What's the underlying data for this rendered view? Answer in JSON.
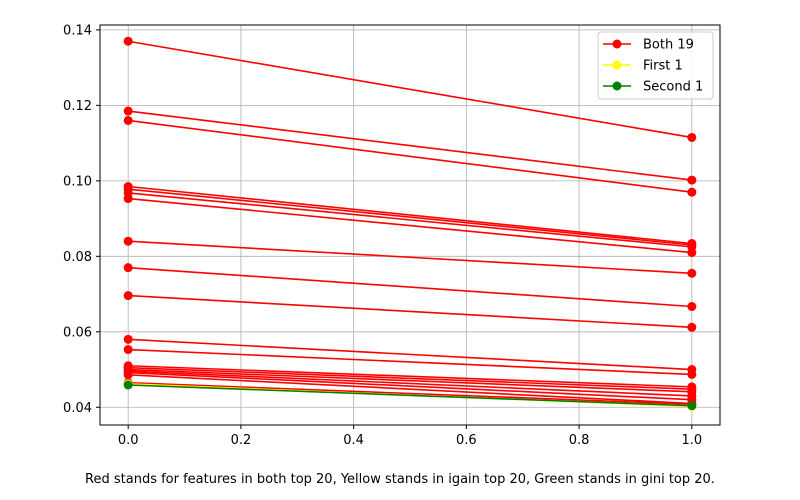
{
  "chart_data": {
    "type": "line",
    "x": [
      0,
      1
    ],
    "xlim": [
      -0.05,
      1.05
    ],
    "ylim": [
      0.0353,
      0.1413
    ],
    "xticks": [
      0.0,
      0.2,
      0.4,
      0.6,
      0.8,
      1.0
    ],
    "xtick_labels": [
      "0.0",
      "0.2",
      "0.4",
      "0.6",
      "0.8",
      "1.0"
    ],
    "yticks": [
      0.04,
      0.06,
      0.08,
      0.1,
      0.12,
      0.14
    ],
    "ytick_labels": [
      "0.04",
      "0.06",
      "0.08",
      "0.10",
      "0.12",
      "0.14"
    ],
    "grid": true,
    "legend_position": "top-right",
    "legend": [
      {
        "label": "Both 19",
        "color": "#ff0000"
      },
      {
        "label": "First 1",
        "color": "#ffff00"
      },
      {
        "label": "Second 1",
        "color": "#008000"
      }
    ],
    "series": [
      {
        "group": "both",
        "color": "#ff0000",
        "values": [
          0.137,
          0.1115
        ]
      },
      {
        "group": "both",
        "color": "#ff0000",
        "values": [
          0.1185,
          0.1002
        ]
      },
      {
        "group": "both",
        "color": "#ff0000",
        "values": [
          0.116,
          0.097
        ]
      },
      {
        "group": "both",
        "color": "#ff0000",
        "values": [
          0.0985,
          0.0834
        ]
      },
      {
        "group": "both",
        "color": "#ff0000",
        "values": [
          0.0978,
          0.083
        ]
      },
      {
        "group": "both",
        "color": "#ff0000",
        "values": [
          0.0968,
          0.0825
        ]
      },
      {
        "group": "both",
        "color": "#ff0000",
        "values": [
          0.0953,
          0.081
        ]
      },
      {
        "group": "both",
        "color": "#ff0000",
        "values": [
          0.084,
          0.0755
        ]
      },
      {
        "group": "both",
        "color": "#ff0000",
        "values": [
          0.077,
          0.0667
        ]
      },
      {
        "group": "both",
        "color": "#ff0000",
        "values": [
          0.0696,
          0.0612
        ]
      },
      {
        "group": "both",
        "color": "#ff0000",
        "values": [
          0.058,
          0.05
        ]
      },
      {
        "group": "both",
        "color": "#ff0000",
        "values": [
          0.0553,
          0.0487
        ]
      },
      {
        "group": "both",
        "color": "#ff0000",
        "values": [
          0.051,
          0.0454
        ]
      },
      {
        "group": "both",
        "color": "#ff0000",
        "values": [
          0.0505,
          0.0448
        ]
      },
      {
        "group": "both",
        "color": "#ff0000",
        "values": [
          0.05,
          0.0441
        ]
      },
      {
        "group": "both",
        "color": "#ff0000",
        "values": [
          0.0496,
          0.043
        ]
      },
      {
        "group": "both",
        "color": "#ff0000",
        "values": [
          0.0492,
          0.042
        ]
      },
      {
        "group": "both",
        "color": "#ff0000",
        "values": [
          0.0486,
          0.041
        ]
      },
      {
        "group": "both",
        "color": "#ff0000",
        "values": [
          0.0465,
          0.0408
        ]
      },
      {
        "group": "first",
        "color": "#ffff00",
        "values": [
          0.0462,
          0.0402
        ]
      },
      {
        "group": "second",
        "color": "#008000",
        "values": [
          0.0459,
          0.0404
        ]
      }
    ]
  },
  "caption": "Red stands for features in both top 20, Yellow stands in igain top 20, Green stands in gini top 20."
}
